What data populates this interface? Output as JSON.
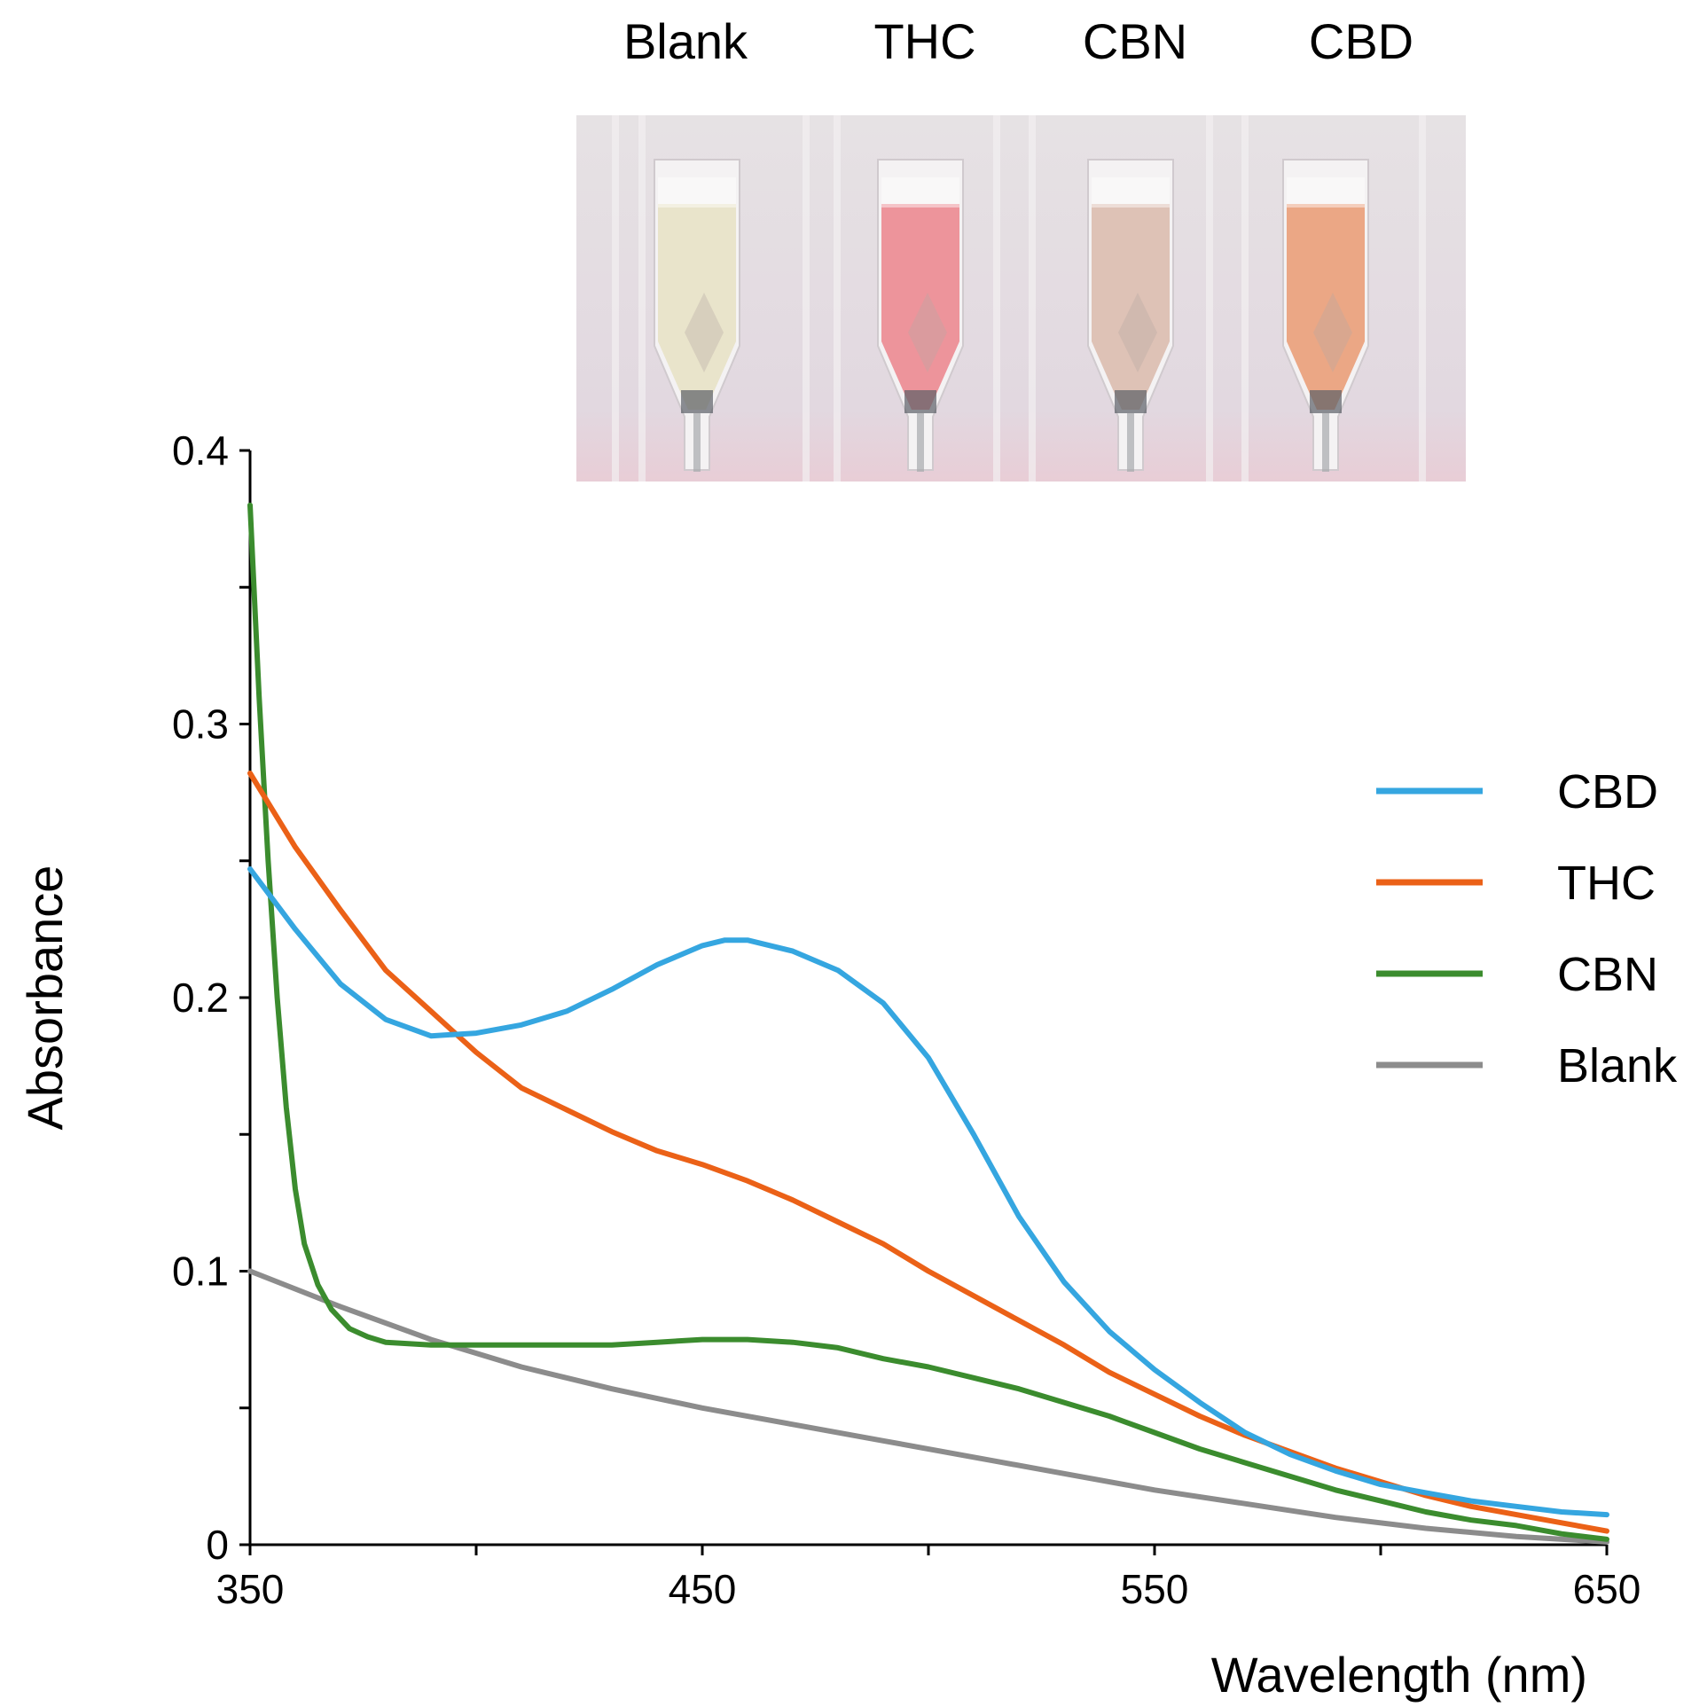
{
  "chart_data": {
    "type": "line",
    "title": "",
    "xlabel": "Wavelength  (nm)",
    "ylabel": "Absorbance",
    "xlim": [
      350,
      650
    ],
    "ylim": [
      0,
      0.4
    ],
    "x_ticks": [
      350,
      450,
      550,
      650
    ],
    "x_tick_labels": [
      "350",
      "450",
      "550",
      "650"
    ],
    "y_ticks": [
      0,
      0.1,
      0.2,
      0.3,
      0.4
    ],
    "y_tick_labels": [
      "0",
      "0.1",
      "0.2",
      "0.3",
      "0.4"
    ],
    "grid": false,
    "legend_position": "right",
    "series": [
      {
        "name": "CBD",
        "color": "#35a6e0",
        "x": [
          350,
          360,
          370,
          380,
          390,
          400,
          410,
          420,
          430,
          440,
          450,
          455,
          460,
          470,
          480,
          490,
          500,
          510,
          520,
          530,
          540,
          550,
          560,
          570,
          580,
          590,
          600,
          610,
          620,
          630,
          640,
          650
        ],
        "y": [
          0.247,
          0.225,
          0.205,
          0.192,
          0.186,
          0.187,
          0.19,
          0.195,
          0.203,
          0.212,
          0.219,
          0.221,
          0.221,
          0.217,
          0.21,
          0.198,
          0.178,
          0.15,
          0.12,
          0.096,
          0.078,
          0.064,
          0.052,
          0.041,
          0.033,
          0.027,
          0.022,
          0.019,
          0.016,
          0.014,
          0.012,
          0.011
        ]
      },
      {
        "name": "THC",
        "color": "#eb6117",
        "x": [
          350,
          360,
          370,
          380,
          390,
          400,
          410,
          420,
          430,
          440,
          450,
          460,
          470,
          480,
          490,
          500,
          510,
          520,
          530,
          540,
          550,
          560,
          570,
          580,
          590,
          600,
          610,
          620,
          630,
          640,
          650
        ],
        "y": [
          0.282,
          0.255,
          0.232,
          0.21,
          0.195,
          0.18,
          0.167,
          0.159,
          0.151,
          0.144,
          0.139,
          0.133,
          0.126,
          0.118,
          0.11,
          0.1,
          0.091,
          0.082,
          0.073,
          0.063,
          0.055,
          0.047,
          0.04,
          0.034,
          0.028,
          0.023,
          0.018,
          0.014,
          0.011,
          0.008,
          0.005
        ]
      },
      {
        "name": "CBN",
        "color": "#3b8c2e",
        "x": [
          350,
          352,
          354,
          356,
          358,
          360,
          362,
          365,
          368,
          372,
          376,
          380,
          390,
          400,
          410,
          420,
          430,
          440,
          450,
          460,
          470,
          480,
          490,
          500,
          510,
          520,
          530,
          540,
          550,
          560,
          570,
          580,
          590,
          600,
          610,
          620,
          630,
          640,
          650
        ],
        "y": [
          0.38,
          0.31,
          0.25,
          0.2,
          0.16,
          0.13,
          0.11,
          0.095,
          0.086,
          0.079,
          0.076,
          0.074,
          0.073,
          0.073,
          0.073,
          0.073,
          0.073,
          0.074,
          0.075,
          0.075,
          0.074,
          0.072,
          0.068,
          0.065,
          0.061,
          0.057,
          0.052,
          0.047,
          0.041,
          0.035,
          0.03,
          0.025,
          0.02,
          0.016,
          0.012,
          0.009,
          0.007,
          0.004,
          0.002
        ]
      },
      {
        "name": "Blank",
        "color": "#8c8c8c",
        "x": [
          350,
          370,
          390,
          410,
          430,
          450,
          470,
          490,
          510,
          530,
          550,
          570,
          590,
          610,
          630,
          650
        ],
        "y": [
          0.1,
          0.087,
          0.075,
          0.065,
          0.057,
          0.05,
          0.044,
          0.038,
          0.032,
          0.026,
          0.02,
          0.015,
          0.01,
          0.006,
          0.003,
          0.001
        ]
      }
    ]
  },
  "photo": {
    "labels": [
      "Blank",
      "THC",
      "CBN",
      "CBD"
    ],
    "tubes": [
      {
        "name": "Blank",
        "liquid_color": "#e8e3c8"
      },
      {
        "name": "THC",
        "liquid_color": "#ec8e96"
      },
      {
        "name": "CBN",
        "liquid_color": "#dcbfb2"
      },
      {
        "name": "CBD",
        "liquid_color": "#eaa27e"
      }
    ],
    "background_color": "#e2d8e0"
  }
}
